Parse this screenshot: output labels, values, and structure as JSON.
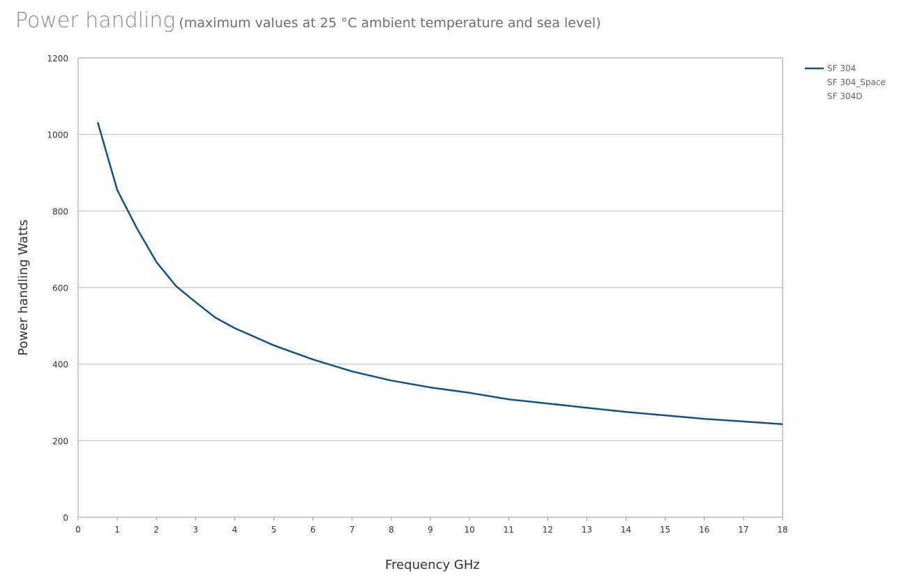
{
  "chart_data": {
    "type": "line",
    "title": "Power handling",
    "subtitle": "(maximum values at 25 °C ambient temperature and sea level)",
    "xlabel": "Frequency GHz",
    "ylabel": "Power handling Watts",
    "xlim": [
      0,
      18
    ],
    "ylim": [
      0,
      1200
    ],
    "xticks": [
      0,
      1,
      2,
      3,
      4,
      5,
      6,
      7,
      8,
      9,
      10,
      11,
      12,
      13,
      14,
      15,
      16,
      17,
      18
    ],
    "yticks": [
      0,
      200,
      400,
      600,
      800,
      1000,
      1200
    ],
    "grid": "horizontal",
    "legend_position": "right",
    "color": "#0f5289",
    "legend": [
      "SF 304",
      "SF 304_Space",
      "SF 304D"
    ],
    "series": [
      {
        "name": "SF 304",
        "x": [
          0.5,
          1,
          1.5,
          2,
          2.5,
          3,
          3.5,
          4,
          5,
          6,
          7,
          8,
          9,
          10,
          11,
          12,
          13,
          14,
          15,
          16,
          17,
          18
        ],
        "y": [
          1032,
          855,
          755,
          667,
          604,
          562,
          522,
          494,
          449,
          412,
          381,
          357,
          339,
          325,
          308,
          297,
          286,
          275,
          266,
          257,
          250,
          243
        ]
      }
    ]
  }
}
